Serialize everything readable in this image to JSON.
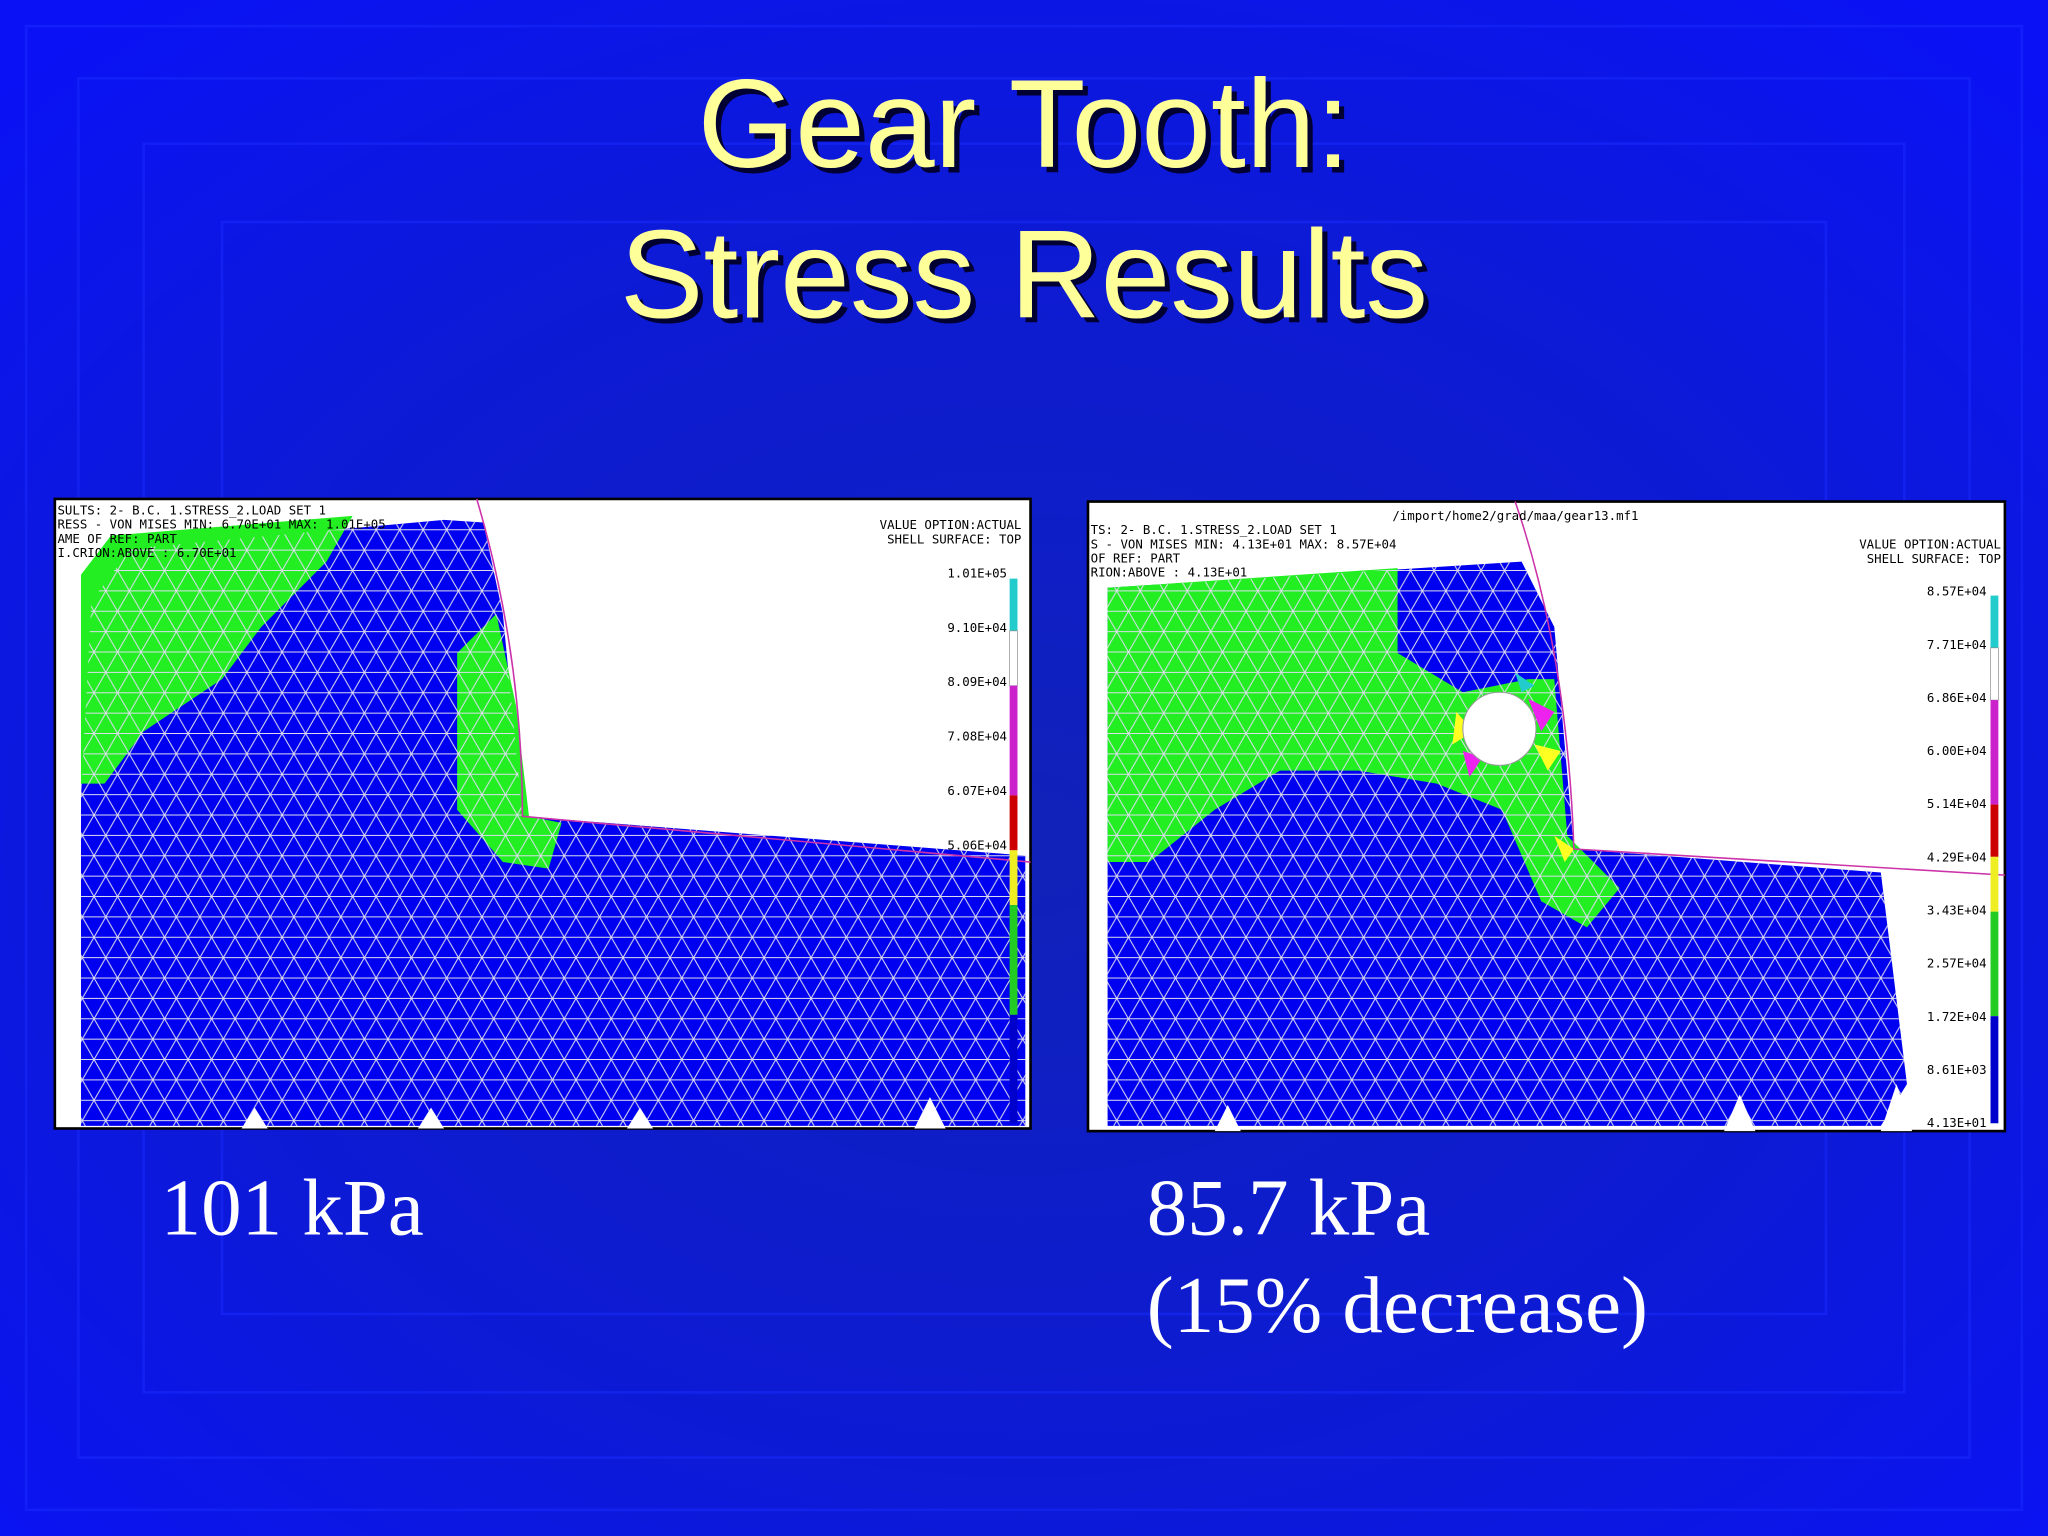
{
  "title": {
    "lines": [
      "Gear Tooth:",
      "Stress Results"
    ]
  },
  "panels": [
    {
      "header": [
        "SULTS: 2- B.C. 1.STRESS_2.LOAD SET 1",
        "RESS - VON MISES MIN: 6.70E+01 MAX: 1.01E+05",
        "AME OF REF: PART",
        "I.CRION:ABOVE   : 6.70E+01"
      ],
      "options": [
        "VALUE OPTION:ACTUAL",
        "SHELL SURFACE: TOP"
      ],
      "legend": [
        "1.01E+05",
        "9.10E+04",
        "8.09E+04",
        "7.08E+04",
        "6.07E+04",
        "5.06E+04"
      ],
      "caption": [
        "101 kPa"
      ]
    },
    {
      "file": "/import/home2/grad/maa/gear13.mf1",
      "header": [
        "TS: 2- B.C. 1.STRESS_2.LOAD SET 1",
        "S - VON MISES MIN: 4.13E+01 MAX: 8.57E+04",
        " OF REF: PART",
        "RION:ABOVE   : 4.13E+01"
      ],
      "options": [
        "VALUE OPTION:ACTUAL",
        "SHELL SURFACE: TOP"
      ],
      "legend": [
        "8.57E+04",
        "7.71E+04",
        "6.86E+04",
        "6.00E+04",
        "5.14E+04",
        "4.29E+04",
        "3.43E+04",
        "2.57E+04",
        "1.72E+04",
        "8.61E+03",
        "4.13E+01"
      ],
      "caption": [
        "85.7 kPa",
        "(15% decrease)"
      ]
    }
  ]
}
